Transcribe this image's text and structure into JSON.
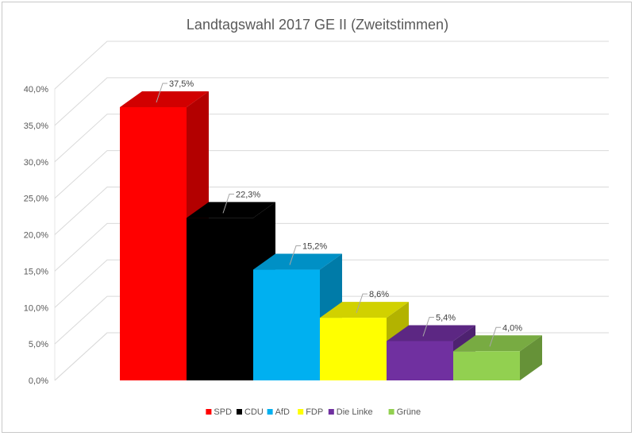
{
  "chart_data": {
    "type": "bar",
    "title": "Landtagswahl 2017 GE II (Zweitstimmen)",
    "categories": [
      "SPD",
      "CDU",
      "AfD",
      "FDP",
      "Die Linke",
      "Grüne"
    ],
    "values": [
      37.5,
      22.3,
      15.2,
      8.6,
      5.4,
      4.0
    ],
    "data_labels": [
      "37,5%",
      "22,3%",
      "15,2%",
      "8,6%",
      "5,4%",
      "4,0%"
    ],
    "colors": [
      "#ff0000",
      "#000000",
      "#00b0f0",
      "#ffff00",
      "#7030a0",
      "#92d050"
    ],
    "ylim": [
      0,
      40
    ],
    "yticks": [
      0,
      5,
      10,
      15,
      20,
      25,
      30,
      35,
      40
    ],
    "ytick_labels": [
      "0,0%",
      "5,0%",
      "10,0%",
      "15,0%",
      "20,0%",
      "25,0%",
      "30,0%",
      "35,0%",
      "40,0%"
    ],
    "grid": true,
    "legend": "bottom",
    "style": "3d-column"
  }
}
